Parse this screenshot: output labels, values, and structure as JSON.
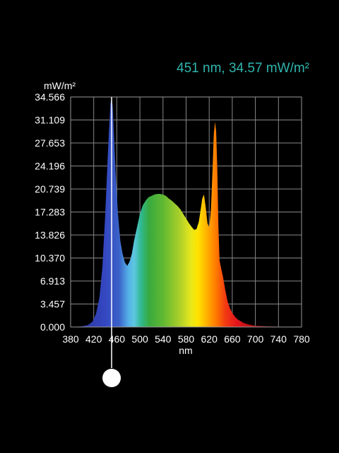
{
  "readout": {
    "text": "451 nm, 34.57 mW/m²"
  },
  "colors": {
    "background": "#000000",
    "grid": "#888888",
    "readout": "#2fb5ad",
    "cursor": "#ffffff"
  },
  "chart_data": {
    "type": "area",
    "title": "",
    "xlabel": "nm",
    "ylabel": "mW/m²",
    "xlim": [
      380,
      780
    ],
    "ylim": [
      0,
      34.566
    ],
    "grid": true,
    "x_ticks": [
      380,
      420,
      460,
      500,
      540,
      580,
      620,
      660,
      700,
      740,
      780
    ],
    "x_tick_labels": [
      "380",
      "420",
      "460",
      "500",
      "540",
      "580",
      "620",
      "660",
      "700",
      "740",
      "780"
    ],
    "y_ticks": [
      0,
      3.457,
      6.913,
      10.37,
      13.826,
      17.283,
      20.739,
      24.196,
      27.653,
      31.109,
      34.566
    ],
    "y_tick_labels": [
      "0.000",
      "3.457",
      "6.913",
      "10.370",
      "13.826",
      "17.283",
      "20.739",
      "24.196",
      "27.653",
      "31.109",
      "34.566"
    ],
    "cursor": {
      "x": 451,
      "y": 34.57
    },
    "series": [
      {
        "x": [
          380,
          400,
          410,
          418,
          424,
          430,
          435,
          440,
          444,
          447,
          449,
          451,
          453,
          455,
          458,
          462,
          466,
          470,
          474,
          478,
          482,
          486,
          490,
          495,
          500,
          505,
          510,
          515,
          520,
          525,
          530,
          535,
          540,
          545,
          550,
          555,
          560,
          565,
          570,
          575,
          580,
          585,
          590,
          594,
          598,
          602,
          605,
          608,
          611,
          614,
          617,
          620,
          623,
          626,
          628,
          630,
          632,
          634,
          636,
          638,
          641,
          644,
          648,
          652,
          656,
          660,
          665,
          670,
          680,
          690,
          700,
          720,
          740,
          760,
          780
        ],
        "y": [
          0.0,
          0.1,
          0.3,
          0.8,
          2.0,
          4.5,
          9.0,
          17.0,
          25.0,
          30.5,
          33.5,
          34.57,
          33.0,
          29.0,
          23.0,
          17.0,
          13.0,
          11.0,
          9.7,
          9.2,
          9.8,
          11.0,
          13.0,
          15.0,
          17.0,
          18.3,
          19.0,
          19.5,
          19.7,
          19.9,
          20.0,
          20.0,
          19.9,
          19.7,
          19.3,
          19.0,
          18.6,
          18.2,
          17.7,
          17.0,
          16.3,
          15.6,
          15.0,
          14.6,
          14.7,
          15.8,
          17.5,
          19.3,
          19.9,
          18.0,
          15.6,
          15.0,
          17.5,
          24.0,
          29.0,
          30.8,
          29.5,
          24.0,
          15.0,
          10.0,
          8.7,
          7.5,
          5.5,
          3.8,
          2.8,
          2.1,
          1.5,
          1.1,
          0.6,
          0.35,
          0.2,
          0.1,
          0.05,
          0.02,
          0.0
        ]
      }
    ]
  }
}
